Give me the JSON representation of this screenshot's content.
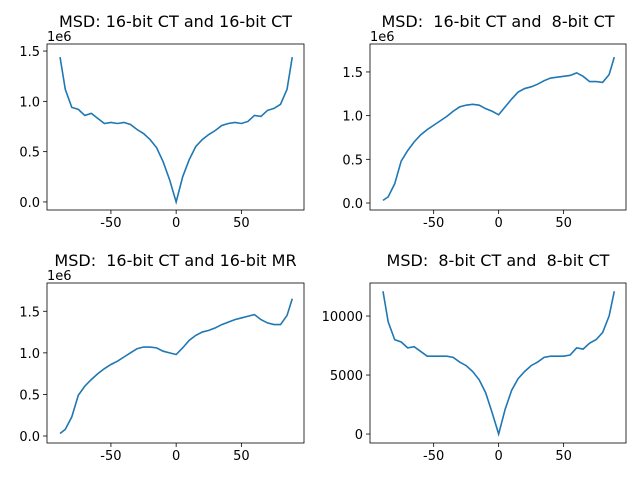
{
  "chart_data": [
    {
      "type": "line",
      "title": "MSD: 16-bit CT and 16-bit CT",
      "offset_text": "1e6",
      "color": "#1f77b4",
      "x": [
        -89,
        -85,
        -80,
        -75,
        -70,
        -65,
        -60,
        -55,
        -50,
        -45,
        -40,
        -35,
        -30,
        -25,
        -20,
        -15,
        -10,
        -5,
        0,
        5,
        10,
        15,
        20,
        25,
        30,
        35,
        40,
        45,
        50,
        55,
        60,
        65,
        70,
        75,
        80,
        85,
        89
      ],
      "values": [
        1440000,
        1120000,
        940000,
        920000,
        860000,
        880000,
        830000,
        780000,
        790000,
        780000,
        790000,
        770000,
        720000,
        680000,
        620000,
        540000,
        400000,
        220000,
        0,
        250000,
        420000,
        550000,
        620000,
        670000,
        710000,
        760000,
        780000,
        790000,
        780000,
        800000,
        860000,
        850000,
        910000,
        930000,
        970000,
        1120000,
        1440000
      ],
      "xlim": [
        -99,
        98
      ],
      "ylim": [
        -80000,
        1570000
      ],
      "xticks": [
        -50,
        0,
        50
      ],
      "yticks": [
        {
          "value": 0,
          "label": "0.0"
        },
        {
          "value": 500000,
          "label": "0.5"
        },
        {
          "value": 1000000,
          "label": "1.0"
        },
        {
          "value": 1500000,
          "label": "1.5"
        }
      ]
    },
    {
      "type": "line",
      "title": "MSD:  16-bit CT and  8-bit CT",
      "offset_text": "1e6",
      "color": "#1f77b4",
      "x": [
        -89,
        -85,
        -80,
        -75,
        -70,
        -65,
        -60,
        -55,
        -50,
        -45,
        -40,
        -35,
        -30,
        -25,
        -20,
        -15,
        -10,
        -5,
        0,
        5,
        10,
        15,
        20,
        25,
        30,
        35,
        40,
        45,
        50,
        55,
        60,
        65,
        70,
        75,
        80,
        85,
        89
      ],
      "values": [
        30000,
        70000,
        220000,
        480000,
        600000,
        700000,
        780000,
        840000,
        890000,
        940000,
        990000,
        1050000,
        1100000,
        1120000,
        1130000,
        1120000,
        1080000,
        1050000,
        1010000,
        1100000,
        1190000,
        1270000,
        1310000,
        1330000,
        1360000,
        1400000,
        1430000,
        1440000,
        1450000,
        1460000,
        1490000,
        1450000,
        1390000,
        1390000,
        1380000,
        1470000,
        1670000
      ],
      "xlim": [
        -99,
        98
      ],
      "ylim": [
        -80000,
        1820000
      ],
      "xticks": [
        -50,
        0,
        50
      ],
      "yticks": [
        {
          "value": 0,
          "label": "0.0"
        },
        {
          "value": 500000,
          "label": "0.5"
        },
        {
          "value": 1000000,
          "label": "1.0"
        },
        {
          "value": 1500000,
          "label": "1.5"
        }
      ]
    },
    {
      "type": "line",
      "title": "MSD:  16-bit CT and 16-bit MR",
      "offset_text": "1e6",
      "color": "#1f77b4",
      "x": [
        -89,
        -85,
        -80,
        -75,
        -70,
        -65,
        -60,
        -55,
        -50,
        -45,
        -40,
        -35,
        -30,
        -25,
        -20,
        -15,
        -10,
        -5,
        0,
        5,
        10,
        15,
        20,
        25,
        30,
        35,
        40,
        45,
        50,
        55,
        60,
        65,
        70,
        75,
        80,
        85,
        89
      ],
      "values": [
        30000,
        80000,
        230000,
        490000,
        600000,
        680000,
        750000,
        810000,
        860000,
        900000,
        950000,
        1000000,
        1050000,
        1070000,
        1070000,
        1060000,
        1020000,
        1000000,
        980000,
        1060000,
        1150000,
        1210000,
        1250000,
        1270000,
        1300000,
        1340000,
        1370000,
        1400000,
        1420000,
        1440000,
        1460000,
        1400000,
        1360000,
        1340000,
        1340000,
        1450000,
        1650000
      ],
      "xlim": [
        -99,
        98
      ],
      "ylim": [
        -84000,
        1840000
      ],
      "xticks": [
        -50,
        0,
        50
      ],
      "yticks": [
        {
          "value": 0,
          "label": "0.0"
        },
        {
          "value": 500000,
          "label": "0.5"
        },
        {
          "value": 1000000,
          "label": "1.0"
        },
        {
          "value": 1500000,
          "label": "1.5"
        }
      ]
    },
    {
      "type": "line",
      "title": "MSD:  8-bit CT and  8-bit CT",
      "color": "#1f77b4",
      "x": [
        -89,
        -85,
        -80,
        -75,
        -70,
        -65,
        -60,
        -55,
        -50,
        -45,
        -40,
        -35,
        -30,
        -25,
        -20,
        -15,
        -10,
        -5,
        0,
        5,
        10,
        15,
        20,
        25,
        30,
        35,
        40,
        45,
        50,
        55,
        60,
        65,
        70,
        75,
        80,
        85,
        89
      ],
      "values": [
        12100,
        9500,
        8000,
        7800,
        7300,
        7400,
        7000,
        6600,
        6600,
        6600,
        6600,
        6500,
        6100,
        5800,
        5300,
        4600,
        3500,
        1800,
        0,
        2100,
        3700,
        4700,
        5300,
        5800,
        6100,
        6500,
        6600,
        6600,
        6600,
        6700,
        7300,
        7200,
        7700,
        8000,
        8600,
        10000,
        12100
      ],
      "xlim": [
        -99,
        98
      ],
      "ylim": [
        -760,
        12800
      ],
      "xticks": [
        -50,
        0,
        50
      ],
      "yticks": [
        0,
        5000,
        10000
      ]
    }
  ]
}
